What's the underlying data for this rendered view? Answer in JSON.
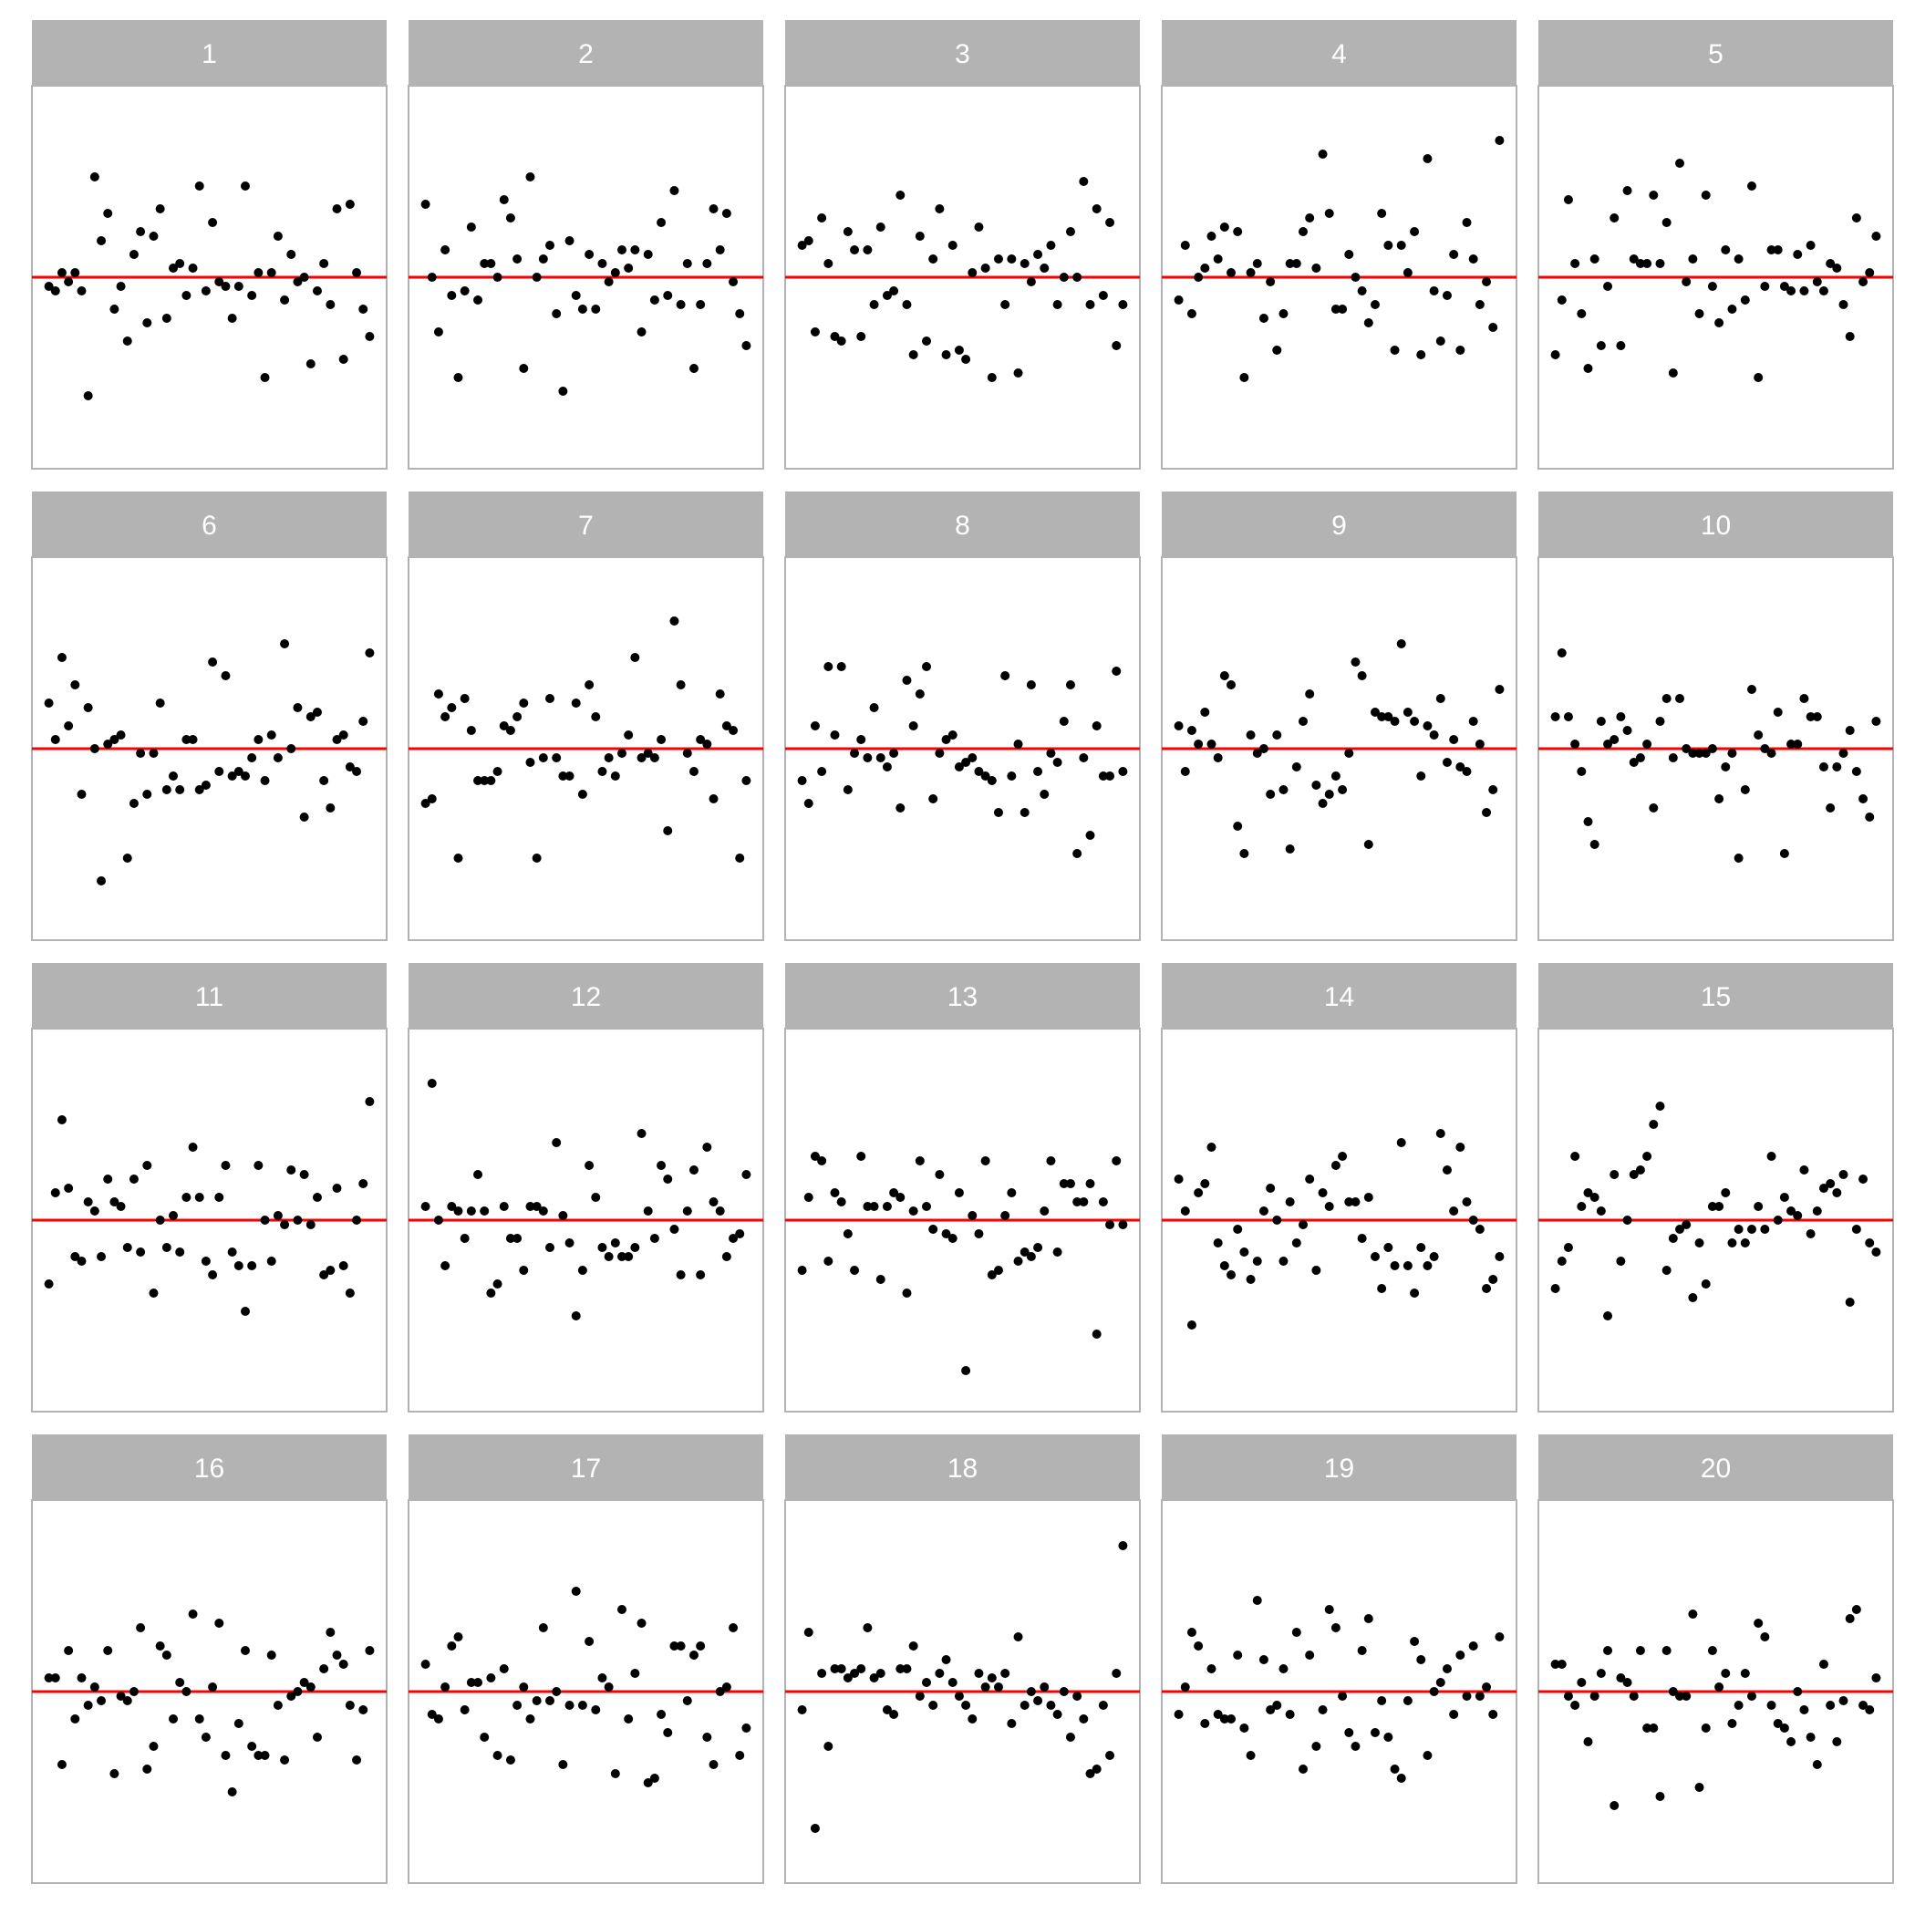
{
  "chart_data": {
    "type": "scatter",
    "title": "",
    "xlabel": "",
    "ylabel": "",
    "facet_layout": {
      "rows": 4,
      "cols": 5
    },
    "x_range": [
      0,
      50
    ],
    "y_range": [
      -4.2,
      4.2
    ],
    "reference_line": {
      "y": 0,
      "color": "#ff0000"
    },
    "colors": {
      "points": "#000000",
      "reference_line": "#ff0000",
      "strip_background": "#b3b3b3",
      "strip_text": "#ffffff",
      "panel_border": "#b3b3b3"
    },
    "panels": [
      {
        "label": "1",
        "y": [
          -0.2,
          -0.3,
          0.1,
          -0.1,
          0.1,
          -0.3,
          -2.6,
          2.2,
          0.8,
          1.4,
          -0.7,
          -0.2,
          -1.4,
          0.5,
          1.0,
          -1.0,
          0.9,
          1.5,
          -0.9,
          0.2,
          0.3,
          -0.4,
          0.2,
          2.0,
          -0.3,
          1.2,
          -0.1,
          -0.2,
          -0.9,
          -0.2,
          2.0,
          -0.4,
          0.1,
          -2.2,
          0.1,
          0.9,
          -0.5,
          0.5,
          -0.1,
          0.0,
          -1.9,
          -0.3,
          0.3,
          -0.6,
          1.5,
          -1.8,
          1.6,
          0.1,
          -0.7,
          -1.3
        ]
      },
      {
        "label": "2",
        "y": [
          1.6,
          0.0,
          -1.2,
          0.6,
          -0.4,
          -2.2,
          -0.3,
          1.1,
          -0.5,
          0.3,
          0.3,
          0.0,
          1.7,
          1.3,
          0.4,
          -2.0,
          2.2,
          0.0,
          0.4,
          0.7,
          -0.8,
          -2.5,
          0.8,
          -0.4,
          -0.7,
          0.5,
          -0.7,
          0.3,
          -0.1,
          0.1,
          0.6,
          0.2,
          0.6,
          -1.2,
          0.5,
          -0.5,
          1.2,
          -0.4,
          1.9,
          -0.6,
          0.3,
          -2.0,
          -0.6,
          0.3,
          1.5,
          0.6,
          1.4,
          -0.1,
          -0.8,
          -1.5
        ]
      },
      {
        "label": "3",
        "y": [
          0.7,
          0.8,
          -1.2,
          1.3,
          0.3,
          -1.3,
          -1.4,
          1.0,
          0.6,
          -1.3,
          0.6,
          -0.6,
          1.1,
          -0.4,
          -0.3,
          1.8,
          -0.6,
          -1.7,
          0.9,
          -1.4,
          0.4,
          1.5,
          -1.7,
          0.7,
          -1.6,
          -1.8,
          0.1,
          1.1,
          0.2,
          -2.2,
          0.4,
          -0.6,
          0.4,
          -2.1,
          0.3,
          -0.1,
          0.5,
          0.2,
          0.7,
          -0.6,
          0.0,
          1.0,
          0.0,
          2.1,
          -0.6,
          1.5,
          -0.4,
          1.2,
          -1.5,
          -0.6
        ]
      },
      {
        "label": "4",
        "y": [
          -0.5,
          0.7,
          -0.8,
          0.0,
          0.2,
          0.9,
          0.4,
          1.1,
          0.1,
          1.0,
          -2.2,
          0.1,
          0.3,
          -0.9,
          -0.1,
          -1.6,
          -0.8,
          0.3,
          0.3,
          1.0,
          1.3,
          0.2,
          2.7,
          1.4,
          -0.7,
          -0.7,
          0.5,
          0.0,
          -0.3,
          -1.0,
          -0.6,
          1.4,
          0.7,
          -1.6,
          0.7,
          0.1,
          1.0,
          -1.7,
          2.6,
          -0.3,
          -1.4,
          -0.4,
          0.5,
          -1.6,
          1.2,
          0.4,
          -0.6,
          -0.1,
          -1.1,
          3.0
        ]
      },
      {
        "label": "5",
        "y": [
          -1.7,
          -0.5,
          1.7,
          0.3,
          -0.8,
          -2.0,
          0.4,
          -1.5,
          -0.2,
          1.3,
          -1.5,
          1.9,
          0.4,
          0.3,
          0.3,
          1.8,
          0.3,
          1.2,
          -2.1,
          2.5,
          -0.1,
          0.4,
          -0.8,
          1.8,
          -0.2,
          -1.0,
          0.6,
          -0.7,
          0.4,
          -0.5,
          2.0,
          -2.2,
          -0.2,
          0.6,
          0.6,
          -0.2,
          -0.3,
          0.5,
          -0.3,
          0.7,
          -0.1,
          -0.3,
          0.3,
          0.2,
          -0.6,
          -1.3,
          1.3,
          -0.1,
          0.1,
          0.9
        ]
      },
      {
        "label": "6",
        "y": [
          1.0,
          0.2,
          2.0,
          0.5,
          1.4,
          -1.0,
          0.9,
          0.0,
          -2.9,
          0.1,
          0.2,
          0.3,
          -2.4,
          -1.2,
          -0.1,
          -1.0,
          -0.1,
          1.0,
          -0.9,
          -0.6,
          -0.9,
          0.2,
          0.2,
          -0.9,
          -0.8,
          1.9,
          -0.5,
          1.6,
          -0.6,
          -0.5,
          -0.6,
          -0.2,
          0.2,
          -0.7,
          0.3,
          -0.2,
          2.3,
          0.0,
          0.9,
          -1.5,
          0.7,
          0.8,
          -0.7,
          -1.3,
          0.2,
          0.3,
          -0.4,
          -0.5,
          0.6,
          2.1
        ]
      },
      {
        "label": "7",
        "y": [
          -1.2,
          -1.1,
          1.2,
          0.7,
          0.9,
          -2.4,
          1.1,
          0.4,
          -0.7,
          -0.7,
          -0.7,
          -0.5,
          0.5,
          0.4,
          0.7,
          1.0,
          -0.3,
          -2.4,
          -0.2,
          1.1,
          -0.2,
          -0.6,
          -0.6,
          1.0,
          -1.0,
          1.4,
          0.7,
          -0.5,
          -0.2,
          -0.6,
          -0.1,
          0.3,
          2.0,
          -0.2,
          -0.1,
          -0.2,
          0.2,
          -1.8,
          2.8,
          1.4,
          -0.1,
          -0.5,
          0.2,
          0.1,
          -1.1,
          1.2,
          0.5,
          0.4,
          -2.4,
          -0.7
        ]
      },
      {
        "label": "8",
        "y": [
          -0.7,
          -1.2,
          0.5,
          -0.5,
          1.8,
          0.3,
          1.8,
          -0.9,
          -0.1,
          0.2,
          -0.2,
          0.9,
          -0.2,
          -0.4,
          -0.1,
          -1.3,
          1.5,
          0.5,
          1.2,
          1.8,
          -1.1,
          -0.1,
          0.2,
          0.3,
          -0.4,
          -0.3,
          -0.2,
          -0.5,
          -0.6,
          -0.7,
          -1.4,
          1.6,
          -0.6,
          0.1,
          -1.4,
          1.4,
          -0.5,
          -1.0,
          -0.1,
          -0.3,
          0.6,
          1.4,
          -2.3,
          -0.2,
          -1.9,
          0.5,
          -0.6,
          -0.6,
          1.7,
          -0.5
        ]
      },
      {
        "label": "9",
        "y": [
          0.5,
          -0.5,
          0.4,
          0.1,
          0.8,
          0.1,
          -0.2,
          1.6,
          1.4,
          -1.7,
          -2.3,
          0.3,
          -0.1,
          0.0,
          -1.0,
          0.3,
          -0.9,
          -2.2,
          -0.4,
          0.6,
          1.2,
          -0.8,
          -1.2,
          -1.0,
          -0.6,
          -0.9,
          -0.1,
          1.9,
          1.6,
          -2.1,
          0.8,
          0.7,
          0.7,
          0.6,
          2.3,
          0.8,
          0.6,
          -0.6,
          0.5,
          0.3,
          1.1,
          -0.3,
          0.2,
          -0.4,
          -0.5,
          0.6,
          0.1,
          -1.4,
          -0.9,
          1.3
        ]
      },
      {
        "label": "10",
        "y": [
          0.7,
          2.1,
          0.7,
          0.1,
          -0.5,
          -1.6,
          -2.1,
          0.6,
          0.1,
          0.2,
          0.7,
          0.4,
          -0.3,
          -0.2,
          0.1,
          -1.3,
          0.6,
          1.1,
          -0.2,
          1.1,
          0.0,
          -0.1,
          -0.1,
          -0.1,
          0.0,
          -1.1,
          -0.4,
          -0.1,
          -2.4,
          -0.9,
          1.3,
          0.3,
          0.0,
          -0.1,
          0.8,
          -2.3,
          0.1,
          0.1,
          1.1,
          0.7,
          0.7,
          -0.4,
          -1.3,
          -0.4,
          -0.1,
          0.4,
          -0.5,
          -1.1,
          -1.5,
          0.6
        ]
      },
      {
        "label": "11",
        "y": [
          -1.4,
          0.6,
          2.2,
          0.7,
          -0.8,
          -0.9,
          0.4,
          0.2,
          -0.8,
          0.9,
          0.4,
          0.3,
          -0.6,
          0.9,
          -0.7,
          1.2,
          -1.6,
          0.0,
          -0.6,
          0.1,
          -0.7,
          0.5,
          1.6,
          0.5,
          -0.9,
          -1.2,
          0.5,
          1.2,
          -0.7,
          -1.0,
          -2.0,
          -1.0,
          1.2,
          0.0,
          -0.9,
          0.1,
          -0.1,
          1.1,
          0.0,
          1.0,
          -0.1,
          0.5,
          -1.2,
          -1.1,
          0.7,
          -1.0,
          -1.6,
          0.0,
          0.8,
          2.6
        ]
      },
      {
        "label": "12",
        "y": [
          0.3,
          3.0,
          0.0,
          -1.0,
          0.3,
          0.2,
          -0.4,
          0.2,
          1.0,
          0.2,
          -1.6,
          -1.4,
          0.3,
          -0.4,
          -0.4,
          -1.1,
          0.3,
          0.3,
          0.2,
          -0.6,
          1.7,
          0.1,
          -0.5,
          -2.1,
          -1.1,
          1.2,
          0.5,
          -0.6,
          -0.8,
          -0.5,
          -0.8,
          -0.8,
          -0.6,
          1.9,
          0.2,
          -0.4,
          1.2,
          0.9,
          -0.2,
          -1.2,
          0.2,
          1.1,
          -1.2,
          1.6,
          0.4,
          0.2,
          -0.8,
          -0.4,
          -0.3,
          1.0
        ]
      },
      {
        "label": "13",
        "y": [
          -1.1,
          0.5,
          1.4,
          1.3,
          -0.9,
          0.6,
          0.4,
          -0.3,
          -1.1,
          1.4,
          0.3,
          0.3,
          -1.3,
          0.3,
          0.6,
          0.5,
          -1.6,
          0.2,
          1.3,
          0.3,
          -0.2,
          1.0,
          -0.3,
          -0.4,
          0.6,
          -3.3,
          0.1,
          -0.3,
          1.3,
          -1.2,
          -1.1,
          0.1,
          0.6,
          -0.9,
          -0.7,
          -0.8,
          -0.6,
          0.2,
          1.3,
          -0.7,
          0.8,
          0.8,
          0.4,
          0.4,
          0.8,
          -2.5,
          0.4,
          -0.1,
          1.3,
          -0.1
        ]
      },
      {
        "label": "14",
        "y": [
          0.9,
          0.2,
          -2.3,
          0.6,
          0.8,
          1.6,
          -0.5,
          -1.0,
          -1.2,
          -0.2,
          -0.7,
          -1.3,
          -0.9,
          0.2,
          0.7,
          0.0,
          -0.9,
          0.4,
          -0.5,
          -0.1,
          0.9,
          -1.1,
          0.6,
          0.3,
          1.2,
          1.4,
          0.4,
          0.4,
          -0.4,
          0.5,
          -0.8,
          -1.5,
          -0.6,
          -1.0,
          1.7,
          -1.0,
          -1.6,
          -0.6,
          -1.0,
          -0.8,
          1.9,
          1.1,
          0.2,
          1.6,
          0.4,
          0.0,
          -0.2,
          -1.5,
          -1.3,
          -0.8
        ]
      },
      {
        "label": "15",
        "y": [
          -1.5,
          -0.9,
          -0.6,
          1.4,
          0.3,
          0.6,
          0.5,
          0.2,
          -2.1,
          1.0,
          -0.9,
          0.0,
          1.0,
          1.1,
          1.4,
          2.1,
          2.5,
          -1.1,
          -0.4,
          -0.2,
          -0.1,
          -1.7,
          -0.5,
          -1.4,
          0.3,
          0.3,
          0.6,
          -0.5,
          -0.2,
          -0.5,
          -0.2,
          0.3,
          -0.2,
          1.4,
          0.0,
          0.5,
          0.2,
          0.1,
          1.1,
          -0.3,
          0.2,
          0.7,
          0.8,
          0.6,
          1.0,
          -1.8,
          -0.2,
          0.9,
          -0.5,
          -0.7
        ]
      },
      {
        "label": "16",
        "y": [
          0.3,
          0.3,
          -1.6,
          0.9,
          -0.6,
          0.3,
          -0.3,
          0.1,
          -0.2,
          0.9,
          -1.8,
          -0.1,
          -0.2,
          0.0,
          1.4,
          -1.7,
          -1.2,
          1.0,
          0.8,
          -0.6,
          0.2,
          0.0,
          1.7,
          -0.6,
          -1.0,
          0.1,
          1.5,
          -1.4,
          -2.2,
          -0.7,
          0.9,
          -1.2,
          -1.4,
          -1.4,
          0.8,
          -0.3,
          -1.5,
          -0.1,
          0.0,
          0.2,
          0.1,
          -1.0,
          0.5,
          1.3,
          0.8,
          0.6,
          -0.3,
          -1.5,
          -0.4,
          0.9
        ]
      },
      {
        "label": "17",
        "y": [
          0.6,
          -0.5,
          -0.6,
          0.1,
          1.0,
          1.2,
          -0.4,
          0.2,
          0.2,
          -1.0,
          0.3,
          -1.4,
          0.5,
          -1.5,
          -0.3,
          0.1,
          -0.6,
          -0.2,
          1.4,
          -0.2,
          0.0,
          -1.6,
          -0.3,
          2.2,
          -0.3,
          1.1,
          -0.4,
          0.3,
          0.1,
          -1.8,
          1.8,
          -0.6,
          0.4,
          1.5,
          -2.0,
          -1.9,
          -0.5,
          -0.9,
          1.0,
          1.0,
          -0.2,
          0.8,
          1.0,
          -1.0,
          -1.6,
          0.0,
          0.1,
          1.4,
          -1.4,
          -0.8
        ]
      },
      {
        "label": "18",
        "y": [
          -0.4,
          1.3,
          -3.0,
          0.4,
          -1.2,
          0.5,
          0.5,
          0.3,
          0.4,
          0.5,
          1.4,
          0.3,
          0.4,
          -0.4,
          -0.5,
          0.5,
          0.5,
          1.0,
          -0.1,
          0.2,
          -0.3,
          0.4,
          0.7,
          0.2,
          -0.1,
          -0.3,
          -0.6,
          0.4,
          0.1,
          0.3,
          0.1,
          0.4,
          -0.7,
          1.2,
          -0.3,
          0.0,
          -0.2,
          0.1,
          -0.3,
          -0.5,
          0.0,
          -1.0,
          -0.1,
          -0.6,
          -1.8,
          -1.7,
          -0.3,
          -1.4,
          0.4,
          3.2
        ]
      },
      {
        "label": "19",
        "y": [
          -0.5,
          0.1,
          1.3,
          1.0,
          -0.7,
          0.5,
          -0.5,
          -0.6,
          -0.6,
          0.8,
          -0.8,
          -1.4,
          2.0,
          0.7,
          -0.4,
          -0.3,
          0.5,
          -0.5,
          1.3,
          -1.7,
          0.8,
          -1.2,
          -0.4,
          1.8,
          1.4,
          -0.1,
          -0.9,
          -1.2,
          0.9,
          1.6,
          -0.9,
          -0.2,
          -1.0,
          -1.7,
          -1.9,
          -0.2,
          1.1,
          0.7,
          -1.4,
          0.0,
          0.2,
          0.5,
          -0.5,
          0.8,
          -0.1,
          1.0,
          -0.1,
          0.1,
          -0.5,
          1.2
        ]
      },
      {
        "label": "20",
        "y": [
          0.6,
          0.6,
          -0.1,
          -0.3,
          0.2,
          -1.1,
          -0.1,
          0.4,
          0.9,
          -2.5,
          0.3,
          0.2,
          -0.1,
          0.9,
          -0.8,
          -0.8,
          -2.3,
          0.9,
          0.0,
          -0.1,
          -0.1,
          1.7,
          -2.1,
          -0.8,
          0.9,
          0.1,
          0.4,
          -0.7,
          -0.3,
          0.4,
          -0.1,
          1.5,
          1.2,
          -0.3,
          -0.7,
          -0.8,
          -1.1,
          0.0,
          -0.4,
          -1.0,
          -1.6,
          0.6,
          -0.3,
          -1.1,
          -0.2,
          1.6,
          1.8,
          -0.3,
          -0.4,
          0.3
        ]
      }
    ]
  }
}
